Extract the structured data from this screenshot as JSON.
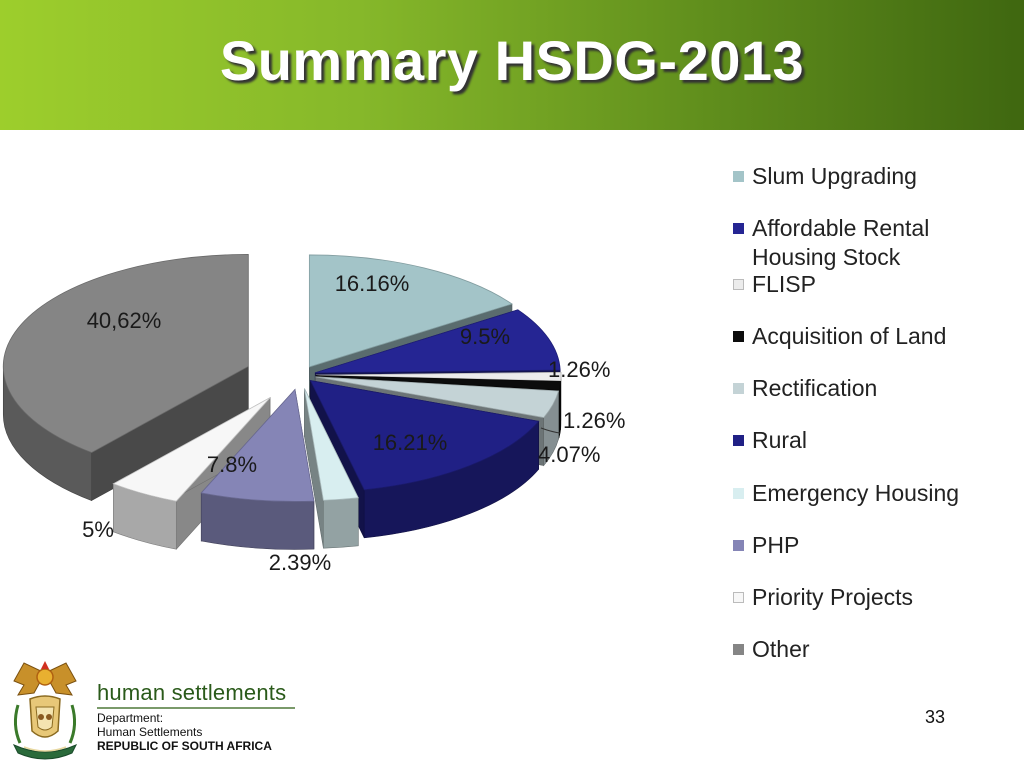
{
  "slide": {
    "title": "Summary HSDG-2013",
    "page_number": "33"
  },
  "footer": {
    "brand": "human settlements",
    "department": "Department:",
    "department_name": "Human Settlements",
    "country": "REPUBLIC OF SOUTH AFRICA"
  },
  "chart_data": {
    "type": "pie",
    "style": "3d-exploded",
    "title": "",
    "legend_position": "right",
    "slices": [
      {
        "name": "Slum Upgrading",
        "value": 16.16,
        "label": "16.16%",
        "color": "#a3c4c8"
      },
      {
        "name": "Affordable Rental Housing Stock",
        "value": 9.5,
        "label": "9.5%",
        "color": "#252593"
      },
      {
        "name": "FLISP",
        "value": 1.26,
        "label": "1.26%",
        "color": "#ececec"
      },
      {
        "name": "Acquisition of Land",
        "value": 1.26,
        "label": "1.26%",
        "color": "#0c0c0c"
      },
      {
        "name": "Rectification",
        "value": 4.07,
        "label": "4.07%",
        "color": "#c4d3d6"
      },
      {
        "name": "Rural",
        "value": 16.21,
        "label": "16.21%",
        "color": "#202085"
      },
      {
        "name": "Emergency Housing",
        "value": 2.39,
        "label": "2.39%",
        "color": "#d8eef0"
      },
      {
        "name": "PHP",
        "value": 7.8,
        "label": "7.8%",
        "color": "#8585b6"
      },
      {
        "name": "Priority Projects",
        "value": 5,
        "label": "5%",
        "color": "#f7f7f7"
      },
      {
        "name": "Other",
        "value": 40.62,
        "label": "40,62%",
        "color": "#858585"
      }
    ]
  }
}
